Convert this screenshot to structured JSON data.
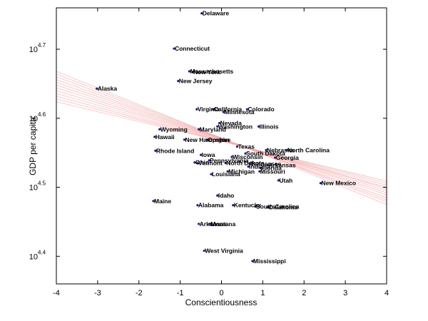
{
  "chart_data": {
    "type": "scatter",
    "xlabel": "Conscientiousness",
    "ylabel": "GDP per capita",
    "xlim": [
      -4,
      4
    ],
    "ylim_log10": [
      4.36,
      4.76
    ],
    "y_scale": "log10",
    "grid": false,
    "legend": "none",
    "x_ticks": [
      {
        "value": -4,
        "label": "-4"
      },
      {
        "value": -3,
        "label": "-3"
      },
      {
        "value": -2,
        "label": "-2"
      },
      {
        "value": -1,
        "label": "-1"
      },
      {
        "value": 0,
        "label": "0"
      },
      {
        "value": 1,
        "label": "1"
      },
      {
        "value": 2,
        "label": "2"
      },
      {
        "value": 3,
        "label": "3"
      },
      {
        "value": 4,
        "label": "4"
      }
    ],
    "y_ticks": [
      {
        "log_value": 4.4,
        "base": "10",
        "exponent": "4.4"
      },
      {
        "log_value": 4.5,
        "base": "10",
        "exponent": "4.5"
      },
      {
        "log_value": 4.6,
        "base": "10",
        "exponent": "4.6"
      },
      {
        "log_value": 4.7,
        "base": "10",
        "exponent": "4.7"
      }
    ],
    "points": [
      {
        "label": "Delaware",
        "x": -0.48,
        "log_gdp": 4.752
      },
      {
        "label": "Connecticut",
        "x": -1.15,
        "log_gdp": 4.701
      },
      {
        "label": "Massachusetts",
        "x": -0.78,
        "log_gdp": 4.668
      },
      {
        "label": "New York",
        "x": -0.7,
        "log_gdp": 4.667
      },
      {
        "label": "New Jersey",
        "x": -1.05,
        "log_gdp": 4.654
      },
      {
        "label": "Alaska",
        "x": -3.02,
        "log_gdp": 4.643
      },
      {
        "label": "Virginia",
        "x": -0.6,
        "log_gdp": 4.613
      },
      {
        "label": "California",
        "x": -0.2,
        "log_gdp": 4.613
      },
      {
        "label": "Minnesota",
        "x": 0.05,
        "log_gdp": 4.609
      },
      {
        "label": "Colorado",
        "x": 0.62,
        "log_gdp": 4.613
      },
      {
        "label": "Nevada",
        "x": -0.05,
        "log_gdp": 4.593
      },
      {
        "label": "Washington",
        "x": -0.1,
        "log_gdp": 4.588
      },
      {
        "label": "Illinois",
        "x": 0.9,
        "log_gdp": 4.588
      },
      {
        "label": "Wyoming",
        "x": -1.5,
        "log_gdp": 4.584
      },
      {
        "label": "Maryland",
        "x": -0.55,
        "log_gdp": 4.584
      },
      {
        "label": "Hawaii",
        "x": -1.62,
        "log_gdp": 4.573
      },
      {
        "label": "New Hampshire",
        "x": -0.9,
        "log_gdp": 4.569
      },
      {
        "label": "Oregon",
        "x": -0.35,
        "log_gdp": 4.569
      },
      {
        "label": "Texas",
        "x": 0.38,
        "log_gdp": 4.559
      },
      {
        "label": "Nebraska",
        "x": 1.08,
        "log_gdp": 4.554
      },
      {
        "label": "North Carolina",
        "x": 1.58,
        "log_gdp": 4.554
      },
      {
        "label": "Rhode Island",
        "x": -1.6,
        "log_gdp": 4.553
      },
      {
        "label": "Iowa",
        "x": -0.5,
        "log_gdp": 4.547
      },
      {
        "label": "South Dakota",
        "x": 0.58,
        "log_gdp": 4.549
      },
      {
        "label": "Wisconsin",
        "x": 0.25,
        "log_gdp": 4.544
      },
      {
        "label": "Georgia",
        "x": 1.3,
        "log_gdp": 4.543
      },
      {
        "label": "Pennsylvania",
        "x": -0.3,
        "log_gdp": 4.539
      },
      {
        "label": "Ohio",
        "x": -0.65,
        "log_gdp": 4.536
      },
      {
        "label": "Vermont",
        "x": -0.58,
        "log_gdp": 4.535
      },
      {
        "label": "North Dakota",
        "x": 0.1,
        "log_gdp": 4.535
      },
      {
        "label": "Tennessee",
        "x": 0.68,
        "log_gdp": 4.534
      },
      {
        "label": "Indiana",
        "x": 0.65,
        "log_gdp": 4.53
      },
      {
        "label": "Arkansas",
        "x": 1.12,
        "log_gdp": 4.532
      },
      {
        "label": "Florida",
        "x": 0.95,
        "log_gdp": 4.528
      },
      {
        "label": "Michigan",
        "x": 0.15,
        "log_gdp": 4.523
      },
      {
        "label": "Missouri",
        "x": 0.92,
        "log_gdp": 4.523
      },
      {
        "label": "Louisiana",
        "x": -0.25,
        "log_gdp": 4.519
      },
      {
        "label": "Utah",
        "x": 1.38,
        "log_gdp": 4.51
      },
      {
        "label": "New Mexico",
        "x": 2.4,
        "log_gdp": 4.506
      },
      {
        "label": "Idaho",
        "x": -0.1,
        "log_gdp": 4.488
      },
      {
        "label": "Maine",
        "x": -1.65,
        "log_gdp": 4.48
      },
      {
        "label": "Alabama",
        "x": -0.58,
        "log_gdp": 4.474
      },
      {
        "label": "Kentucky",
        "x": 0.28,
        "log_gdp": 4.474
      },
      {
        "label": "South Carolina",
        "x": 0.82,
        "log_gdp": 4.472
      },
      {
        "label": "Oklahoma",
        "x": 1.12,
        "log_gdp": 4.471
      },
      {
        "label": "Arkansas",
        "x": -0.55,
        "log_gdp": 4.447
      },
      {
        "label": "Montana",
        "x": -0.28,
        "log_gdp": 4.447
      },
      {
        "label": "West Virginia",
        "x": -0.42,
        "log_gdp": 4.408
      },
      {
        "label": "Mississippi",
        "x": 0.75,
        "log_gdp": 4.393
      }
    ],
    "regression_band": {
      "color": "#f2a6a6",
      "lines": [
        {
          "y_at_xmin": 4.668,
          "y_at_xmax": 4.475
        },
        {
          "y_at_xmin": 4.664,
          "y_at_xmax": 4.479
        },
        {
          "y_at_xmin": 4.66,
          "y_at_xmax": 4.482
        },
        {
          "y_at_xmin": 4.656,
          "y_at_xmax": 4.485
        },
        {
          "y_at_xmin": 4.652,
          "y_at_xmax": 4.489
        },
        {
          "y_at_xmin": 4.648,
          "y_at_xmax": 4.492
        },
        {
          "y_at_xmin": 4.644,
          "y_at_xmax": 4.495
        },
        {
          "y_at_xmin": 4.64,
          "y_at_xmax": 4.498
        },
        {
          "y_at_xmin": 4.636,
          "y_at_xmax": 4.5
        },
        {
          "y_at_xmin": 4.632,
          "y_at_xmax": 4.503
        },
        {
          "y_at_xmin": 4.628,
          "y_at_xmax": 4.506
        },
        {
          "y_at_xmin": 4.624,
          "y_at_xmax": 4.509
        }
      ]
    },
    "colors": {
      "marker": "#1a1a8c",
      "axis": "#000000",
      "background": "#ffffff"
    }
  }
}
